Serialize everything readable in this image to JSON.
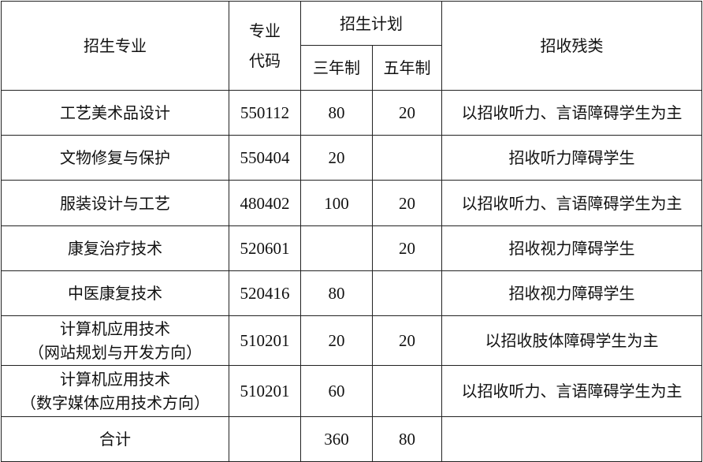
{
  "headers": {
    "major": "招生专业",
    "code_line1": "专业",
    "code_line2": "代码",
    "plan": "招生计划",
    "three_year": "三年制",
    "five_year": "五年制",
    "disability": "招收残类"
  },
  "rows": [
    {
      "major": "工艺美术品设计",
      "sub": "",
      "code": "550112",
      "three": "80",
      "five": "20",
      "disability": "以招收听力、言语障碍学生为主"
    },
    {
      "major": "文物修复与保护",
      "sub": "",
      "code": "550404",
      "three": "20",
      "five": "",
      "disability": "招收听力障碍学生"
    },
    {
      "major": "服装设计与工艺",
      "sub": "",
      "code": "480402",
      "three": "100",
      "five": "20",
      "disability": "以招收听力、言语障碍学生为主"
    },
    {
      "major": "康复治疗技术",
      "sub": "",
      "code": "520601",
      "three": "",
      "five": "20",
      "disability": "招收视力障碍学生"
    },
    {
      "major": "中医康复技术",
      "sub": "",
      "code": "520416",
      "three": "80",
      "five": "",
      "disability": "招收视力障碍学生"
    },
    {
      "major": "计算机应用技术",
      "sub": "（网站规划与开发方向）",
      "code": "510201",
      "three": "20",
      "five": "20",
      "disability": "以招收肢体障碍学生为主"
    },
    {
      "major": "计算机应用技术",
      "sub": "（数字媒体应用技术方向）",
      "code": "510201",
      "three": "60",
      "five": "",
      "disability": "以招收听力、言语障碍学生为主"
    }
  ],
  "total": {
    "label": "合计",
    "code": "",
    "three": "360",
    "five": "80",
    "disability": ""
  }
}
